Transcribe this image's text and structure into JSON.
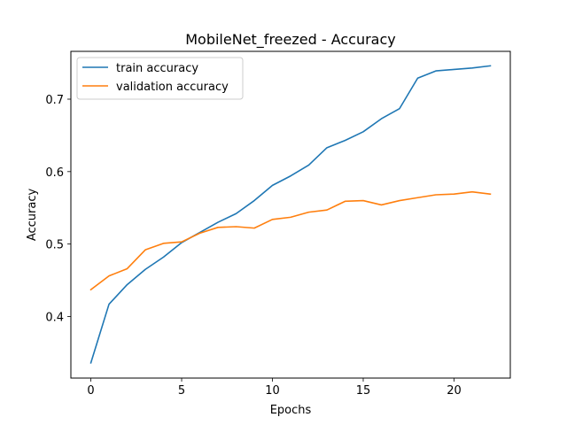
{
  "chart_data": {
    "type": "line",
    "title": "MobileNet_freezed - Accuracy",
    "xlabel": "Epochs",
    "ylabel": "Accuracy",
    "xlim": [
      -1.1,
      23.1
    ],
    "ylim": [
      0.315,
      0.766
    ],
    "xticks": [
      0,
      5,
      10,
      15,
      20
    ],
    "yticks": [
      0.4,
      0.5,
      0.6,
      0.7
    ],
    "ytick_labels": [
      "0.4",
      "0.5",
      "0.6",
      "0.7"
    ],
    "grid": false,
    "legend_position": "upper-left",
    "x": [
      0,
      1,
      2,
      3,
      4,
      5,
      6,
      7,
      8,
      9,
      10,
      11,
      12,
      13,
      14,
      15,
      16,
      17,
      18,
      19,
      20,
      21,
      22
    ],
    "series": [
      {
        "name": "train accuracy",
        "color": "#1f77b4",
        "values": [
          0.336,
          0.417,
          0.444,
          0.465,
          0.482,
          0.502,
          0.516,
          0.53,
          0.542,
          0.56,
          0.581,
          0.594,
          0.609,
          0.633,
          0.643,
          0.655,
          0.673,
          0.687,
          0.729,
          0.739,
          0.741,
          0.743,
          0.746
        ]
      },
      {
        "name": "validation accuracy",
        "color": "#ff7f0e",
        "values": [
          0.437,
          0.456,
          0.466,
          0.492,
          0.501,
          0.503,
          0.515,
          0.523,
          0.524,
          0.522,
          0.534,
          0.537,
          0.544,
          0.547,
          0.559,
          0.56,
          0.554,
          0.56,
          0.564,
          0.568,
          0.569,
          0.572,
          0.569
        ]
      }
    ]
  }
}
